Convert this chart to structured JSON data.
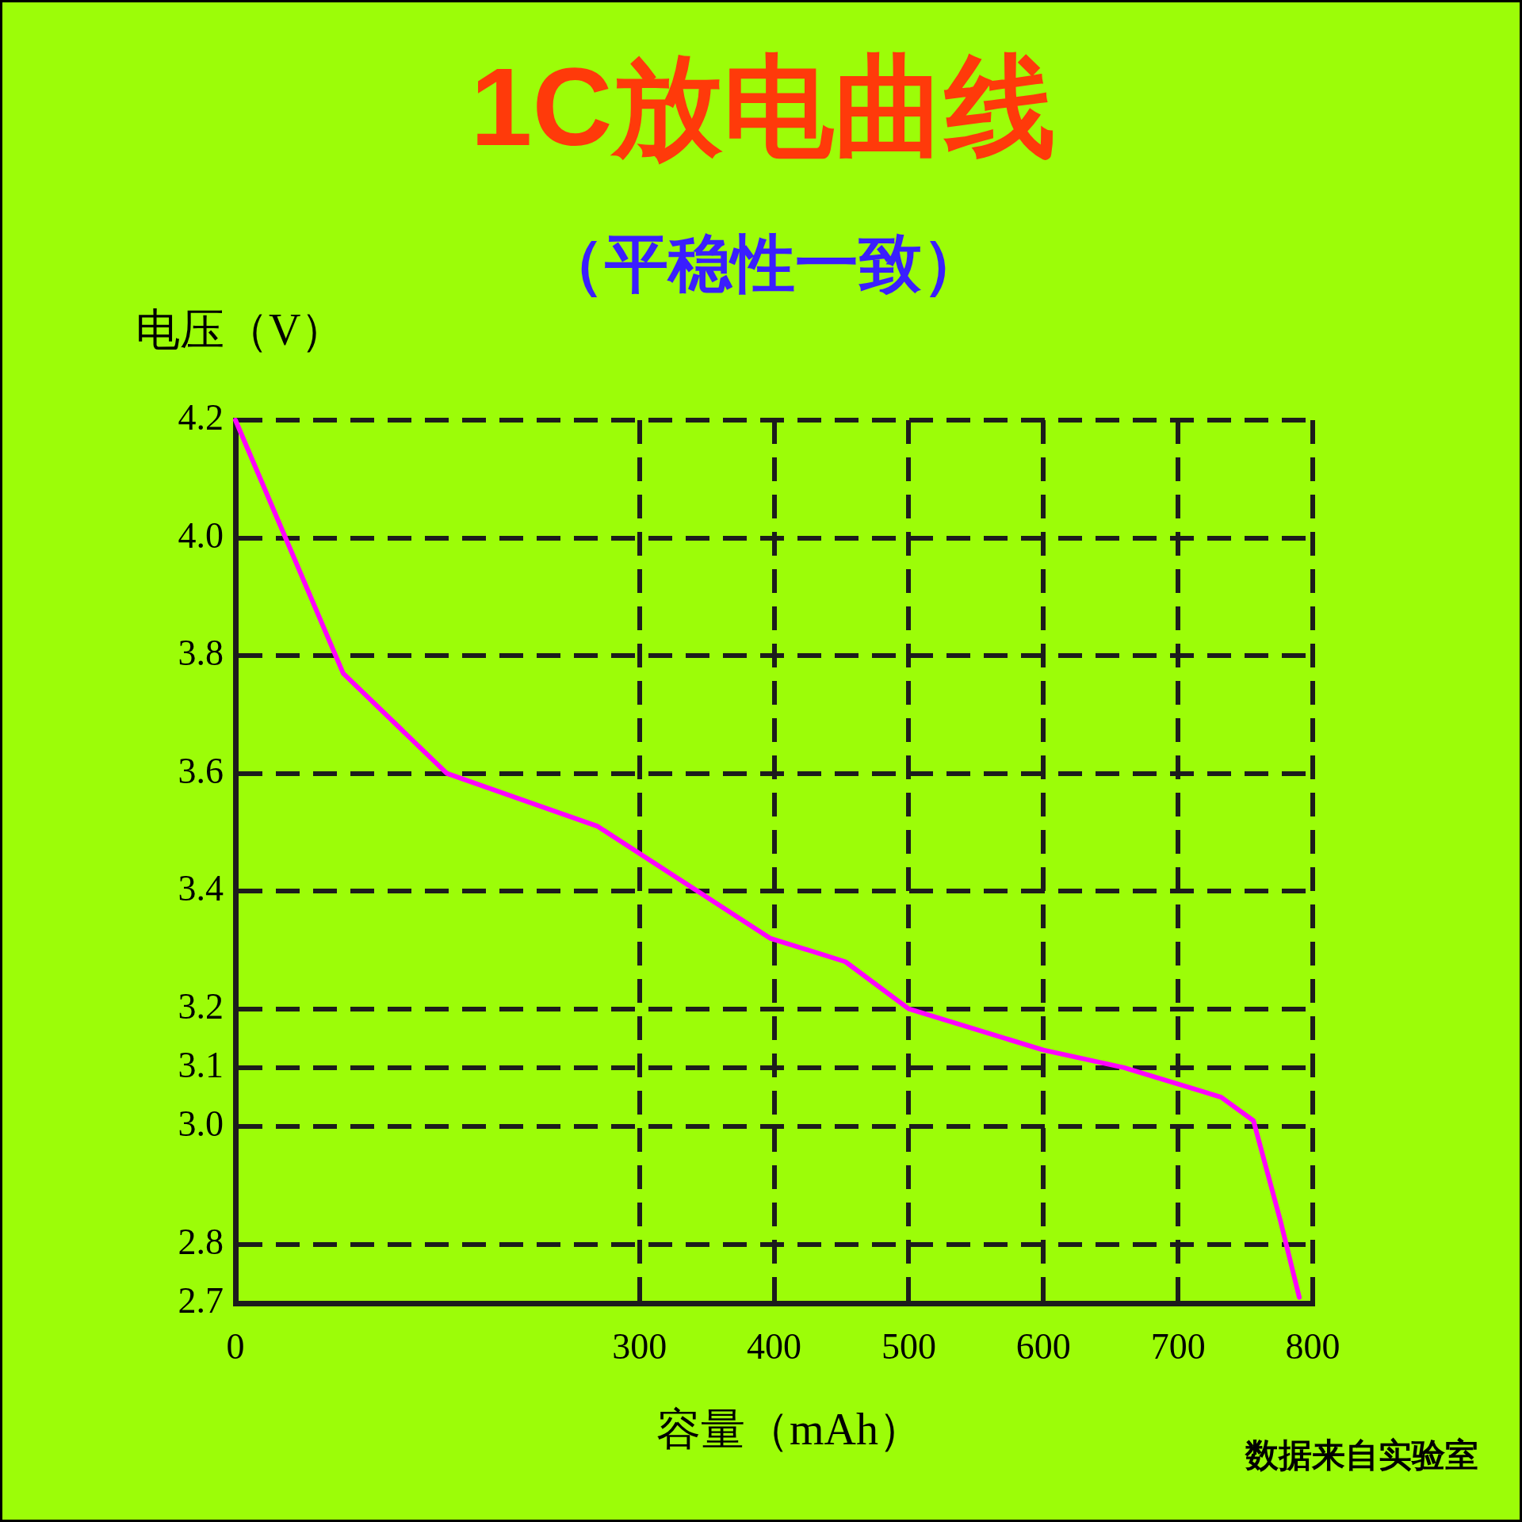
{
  "chart_data": {
    "type": "line",
    "title": "1C放电曲线",
    "subtitle": "（平稳性一致）",
    "xlabel": "容量（mAh）",
    "ylabel": "电压（V）",
    "annotations": [
      "数据来自实验室"
    ],
    "x": [
      0,
      80,
      157,
      269,
      397,
      453,
      500,
      600,
      660,
      732,
      756,
      776,
      790
    ],
    "values": [
      4.2,
      3.77,
      3.6,
      3.51,
      3.32,
      3.28,
      3.2,
      3.13,
      3.1,
      3.05,
      3.01,
      2.84,
      2.71
    ],
    "color": "#ff00ff",
    "xlim": [
      0,
      800
    ],
    "xticks": [
      0,
      300,
      400,
      500,
      600,
      700,
      800
    ],
    "ylim": [
      2.7,
      4.2
    ],
    "yticks": [
      2.7,
      2.8,
      {
        "value": 3,
        "label": "3.0"
      },
      3.1,
      3.2,
      3.4,
      3.6,
      3.8,
      {
        "value": 4,
        "label": "4.0"
      },
      4.2
    ],
    "grid": true,
    "legend": false,
    "marker": "none",
    "line_style": "solid"
  }
}
